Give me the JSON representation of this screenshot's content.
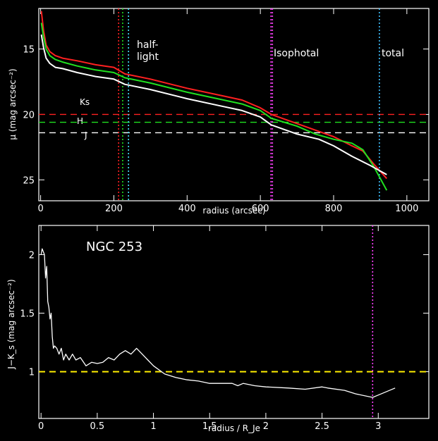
{
  "chart_data": [
    {
      "type": "line",
      "xlabel": "radius (arcsec)",
      "ylabel": "μ (mag arcsec⁻²)",
      "xlim": [
        -5,
        1060
      ],
      "ylim": [
        26.6,
        11.9
      ],
      "y_inverted": true,
      "x_ticks": [
        0,
        200,
        400,
        600,
        800,
        1000
      ],
      "y_ticks": [
        15,
        20,
        25
      ],
      "grid": false,
      "series": [
        {
          "name": "Ks",
          "color": "#ff2020",
          "points": [
            [
              2,
              12.1
            ],
            [
              8,
              13.6
            ],
            [
              15,
              14.7
            ],
            [
              25,
              15.2
            ],
            [
              40,
              15.5
            ],
            [
              60,
              15.7
            ],
            [
              100,
              15.9
            ],
            [
              150,
              16.2
            ],
            [
              200,
              16.4
            ],
            [
              230,
              16.9
            ],
            [
              300,
              17.3
            ],
            [
              400,
              18.0
            ],
            [
              500,
              18.6
            ],
            [
              550,
              18.9
            ],
            [
              600,
              19.5
            ],
            [
              630,
              20.0
            ],
            [
              700,
              20.7
            ],
            [
              760,
              21.3
            ],
            [
              800,
              21.7
            ],
            [
              850,
              22.4
            ],
            [
              880,
              22.8
            ],
            [
              910,
              23.8
            ],
            [
              945,
              24.9
            ]
          ]
        },
        {
          "name": "H",
          "color": "#20e020",
          "points": [
            [
              2,
              13.0
            ],
            [
              8,
              14.1
            ],
            [
              15,
              15.0
            ],
            [
              25,
              15.5
            ],
            [
              40,
              15.8
            ],
            [
              60,
              16.0
            ],
            [
              100,
              16.3
            ],
            [
              150,
              16.6
            ],
            [
              200,
              16.8
            ],
            [
              230,
              17.2
            ],
            [
              300,
              17.6
            ],
            [
              400,
              18.3
            ],
            [
              500,
              18.9
            ],
            [
              550,
              19.2
            ],
            [
              600,
              19.7
            ],
            [
              630,
              20.3
            ],
            [
              700,
              20.9
            ],
            [
              750,
              21.5
            ],
            [
              800,
              21.9
            ],
            [
              850,
              22.2
            ],
            [
              880,
              22.7
            ],
            [
              910,
              24.0
            ],
            [
              945,
              25.8
            ]
          ]
        },
        {
          "name": "J",
          "color": "#ffffff",
          "points": [
            [
              2,
              13.9
            ],
            [
              8,
              14.9
            ],
            [
              15,
              15.7
            ],
            [
              25,
              16.1
            ],
            [
              40,
              16.4
            ],
            [
              60,
              16.5
            ],
            [
              100,
              16.8
            ],
            [
              150,
              17.1
            ],
            [
              200,
              17.3
            ],
            [
              230,
              17.7
            ],
            [
              300,
              18.1
            ],
            [
              400,
              18.8
            ],
            [
              500,
              19.4
            ],
            [
              550,
              19.7
            ],
            [
              600,
              20.2
            ],
            [
              630,
              20.8
            ],
            [
              700,
              21.5
            ],
            [
              760,
              21.9
            ],
            [
              800,
              22.4
            ],
            [
              850,
              23.2
            ],
            [
              900,
              23.9
            ],
            [
              945,
              24.6
            ]
          ]
        }
      ],
      "hlines": [
        {
          "label": "Ks",
          "y": 20.0,
          "color": "#ff2020"
        },
        {
          "label": "H",
          "y": 20.6,
          "color": "#20e020"
        },
        {
          "label": "J",
          "y": 21.4,
          "color": "#ffffff"
        }
      ],
      "vlines": [
        {
          "x": 213,
          "color": "#ff2020"
        },
        {
          "x": 224,
          "color": "#20e020"
        },
        {
          "x": 240,
          "color": "#40e0ff"
        },
        {
          "x": 629,
          "color": "#ff40ff"
        },
        {
          "x": 633,
          "color": "#ff40ff"
        },
        {
          "x": 925,
          "color": "#40c0ff"
        }
      ],
      "annotations": [
        "half-",
        "light",
        "Isophotal",
        "total"
      ]
    },
    {
      "type": "line",
      "title": "NGC 253",
      "xlabel": "radius / R_Je",
      "ylabel": "J−K_s (mag arcsec⁻²)",
      "xlim": [
        -0.02,
        3.45
      ],
      "ylim": [
        0.6,
        2.25
      ],
      "x_ticks": [
        0,
        0.5,
        1,
        1.5,
        2,
        2.5,
        3
      ],
      "y_ticks": [
        1,
        1.5,
        2
      ],
      "grid": false,
      "hline": {
        "y": 1.0,
        "color": "#ffee00"
      },
      "vline": {
        "x": 2.95,
        "color": "#ff40ff"
      },
      "series": [
        {
          "color": "#ffffff",
          "points": [
            [
              0.0,
              2.0
            ],
            [
              0.01,
              2.05
            ],
            [
              0.03,
              2.0
            ],
            [
              0.04,
              1.8
            ],
            [
              0.05,
              1.9
            ],
            [
              0.06,
              1.6
            ],
            [
              0.07,
              1.55
            ],
            [
              0.08,
              1.45
            ],
            [
              0.09,
              1.5
            ],
            [
              0.1,
              1.3
            ],
            [
              0.11,
              1.2
            ],
            [
              0.12,
              1.22
            ],
            [
              0.14,
              1.2
            ],
            [
              0.16,
              1.15
            ],
            [
              0.18,
              1.2
            ],
            [
              0.2,
              1.1
            ],
            [
              0.22,
              1.15
            ],
            [
              0.25,
              1.1
            ],
            [
              0.28,
              1.15
            ],
            [
              0.31,
              1.1
            ],
            [
              0.35,
              1.12
            ],
            [
              0.4,
              1.05
            ],
            [
              0.45,
              1.08
            ],
            [
              0.5,
              1.07
            ],
            [
              0.55,
              1.08
            ],
            [
              0.6,
              1.12
            ],
            [
              0.65,
              1.1
            ],
            [
              0.7,
              1.15
            ],
            [
              0.75,
              1.18
            ],
            [
              0.8,
              1.15
            ],
            [
              0.85,
              1.2
            ],
            [
              0.9,
              1.15
            ],
            [
              0.95,
              1.1
            ],
            [
              1.0,
              1.05
            ],
            [
              1.1,
              0.98
            ],
            [
              1.2,
              0.95
            ],
            [
              1.3,
              0.93
            ],
            [
              1.4,
              0.92
            ],
            [
              1.5,
              0.9
            ],
            [
              1.6,
              0.9
            ],
            [
              1.7,
              0.9
            ],
            [
              1.75,
              0.88
            ],
            [
              1.8,
              0.9
            ],
            [
              1.9,
              0.88
            ],
            [
              2.0,
              0.87
            ],
            [
              2.2,
              0.86
            ],
            [
              2.35,
              0.85
            ],
            [
              2.5,
              0.87
            ],
            [
              2.55,
              0.86
            ],
            [
              2.7,
              0.84
            ],
            [
              2.8,
              0.81
            ],
            [
              2.95,
              0.78
            ],
            [
              3.0,
              0.8
            ],
            [
              3.15,
              0.86
            ]
          ]
        }
      ]
    }
  ]
}
